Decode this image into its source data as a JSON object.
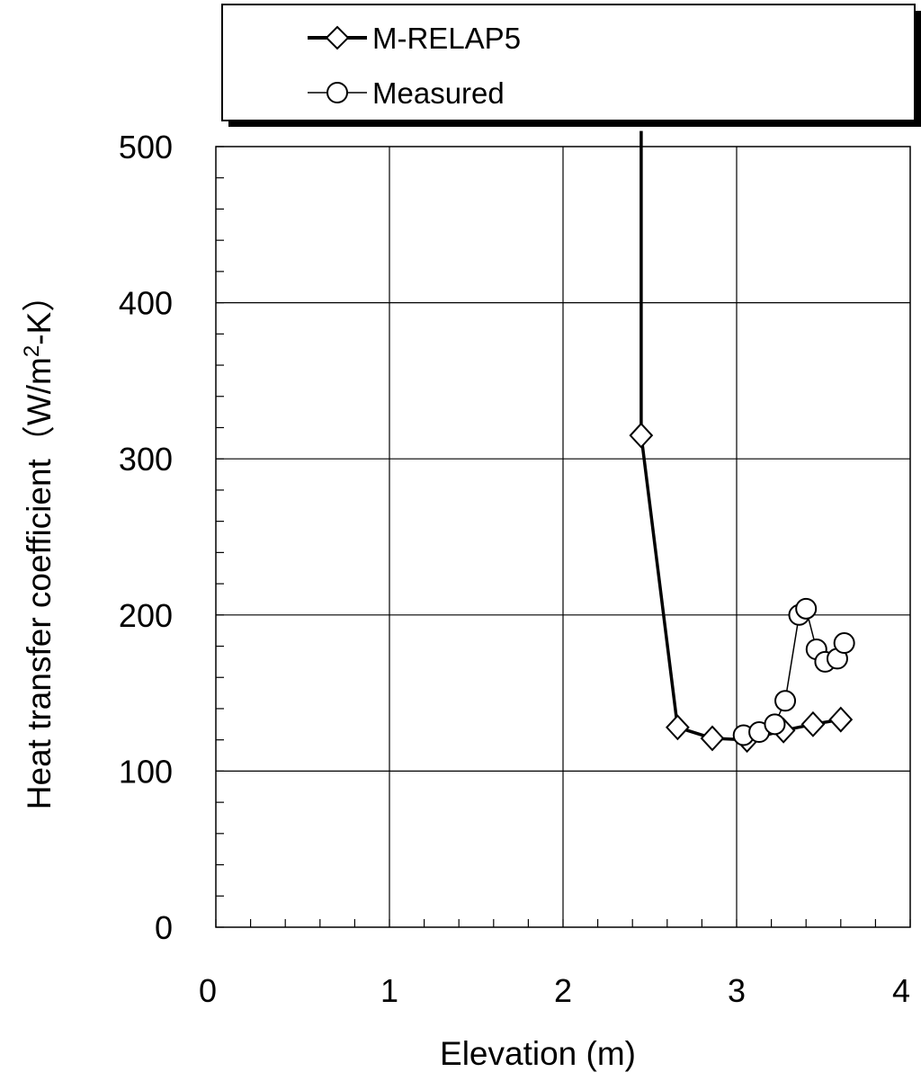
{
  "chart_data": {
    "type": "line",
    "xlabel": "Elevation (m)",
    "ylabel": "Heat transfer coefficient（W/m²-K）",
    "ylabel_parts": {
      "main": "Heat transfer coefficient（W/m",
      "sup": "2",
      "tail": "-K）"
    },
    "xlim": [
      0,
      4
    ],
    "ylim": [
      0,
      500
    ],
    "x_ticks": [
      "0",
      "1",
      "2",
      "3",
      "4"
    ],
    "y_ticks": [
      "0",
      "100",
      "200",
      "300",
      "400",
      "500"
    ],
    "grid": true,
    "legend_position": "top",
    "series": [
      {
        "name": "M-RELAP5",
        "marker": "diamond",
        "color": "#000000",
        "line_style": "thick",
        "lead_in": [
          [
            2.45,
            510
          ],
          [
            2.45,
            315
          ]
        ],
        "x": [
          2.45,
          2.66,
          2.86,
          3.06,
          3.27,
          3.44,
          3.6
        ],
        "y": [
          315,
          128,
          121,
          120,
          126,
          130,
          133
        ]
      },
      {
        "name": "Measured",
        "marker": "circle",
        "color": "#000000",
        "line_style": "thin",
        "x": [
          3.04,
          3.13,
          3.22,
          3.28,
          3.36,
          3.4,
          3.46,
          3.51,
          3.58,
          3.62
        ],
        "y": [
          123,
          125,
          130,
          145,
          200,
          204,
          178,
          170,
          172,
          182
        ]
      }
    ]
  }
}
